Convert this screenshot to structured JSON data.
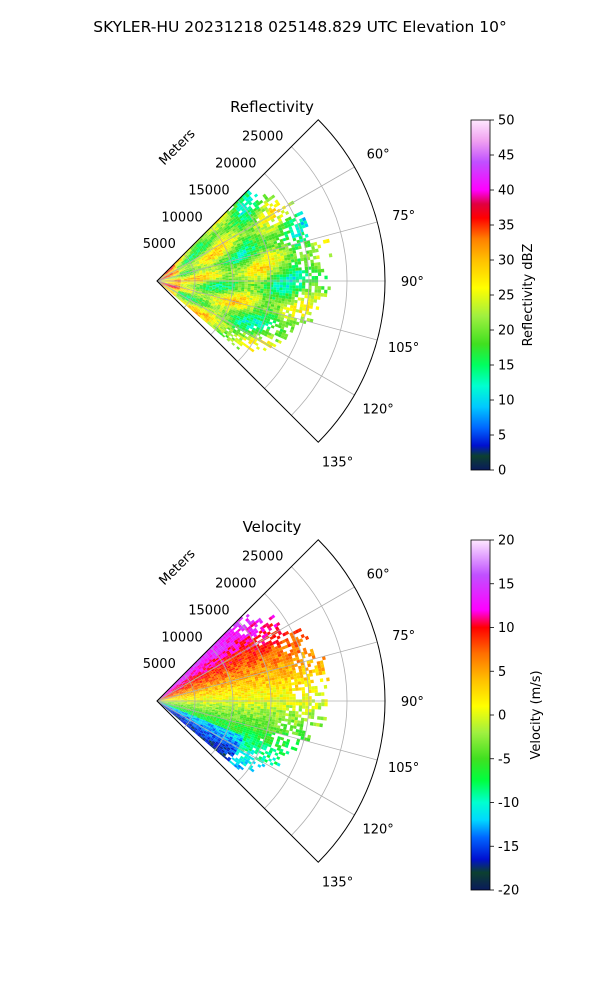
{
  "figure": {
    "suptitle": "SKYLER-HU  20231218  025148.829 UTC Elevation 10°"
  },
  "chart_data": [
    {
      "type": "polar-sector-heatmap",
      "title": "Reflectivity",
      "radial_axis_label": "Meters",
      "radial_ticks": [
        "5000",
        "10000",
        "15000",
        "20000",
        "25000"
      ],
      "radial_tick_values": [
        5000,
        10000,
        15000,
        20000,
        25000
      ],
      "rlim": [
        0,
        30000
      ],
      "angular_ticks": [
        "60°",
        "75°",
        "90°",
        "105°",
        "120°",
        "135°"
      ],
      "angular_tick_values": [
        60,
        75,
        90,
        105,
        120,
        135
      ],
      "theta_range_deg": [
        45,
        135
      ],
      "grid": true,
      "colorbar": {
        "label": "Reflectivity dBZ",
        "ticks": [
          "0",
          "5",
          "10",
          "15",
          "20",
          "25",
          "30",
          "35",
          "40",
          "45",
          "50"
        ],
        "min": 0,
        "max": 50,
        "stops": [
          {
            "v": 0,
            "c": "#0a1a5c"
          },
          {
            "v": 2,
            "c": "#0c4030"
          },
          {
            "v": 3.5,
            "c": "#0010d0"
          },
          {
            "v": 6,
            "c": "#0066ff"
          },
          {
            "v": 9,
            "c": "#00c8ff"
          },
          {
            "v": 12,
            "c": "#00ffd0"
          },
          {
            "v": 15,
            "c": "#00ff60"
          },
          {
            "v": 18,
            "c": "#40e020"
          },
          {
            "v": 22,
            "c": "#a0f040"
          },
          {
            "v": 26,
            "c": "#ffff00"
          },
          {
            "v": 30,
            "c": "#ffc000"
          },
          {
            "v": 33,
            "c": "#ff8000"
          },
          {
            "v": 36,
            "c": "#ff0000"
          },
          {
            "v": 38,
            "c": "#e00040"
          },
          {
            "v": 40,
            "c": "#ff00ff"
          },
          {
            "v": 44,
            "c": "#c050ff"
          },
          {
            "v": 47,
            "c": "#f0a0f0"
          },
          {
            "v": 50,
            "c": "#ffe8ff"
          }
        ]
      },
      "data_extent": {
        "theta_deg": [
          45,
          130
        ],
        "r_max_m": [
          5000,
          22000
        ]
      },
      "dominant_values": "mostly 20-32 dBZ with scattered cores of 34-38 dBZ"
    },
    {
      "type": "polar-sector-heatmap",
      "title": "Velocity",
      "radial_axis_label": "Meters",
      "radial_ticks": [
        "5000",
        "10000",
        "15000",
        "20000",
        "25000"
      ],
      "radial_tick_values": [
        5000,
        10000,
        15000,
        20000,
        25000
      ],
      "rlim": [
        0,
        30000
      ],
      "angular_ticks": [
        "60°",
        "75°",
        "90°",
        "105°",
        "120°",
        "135°"
      ],
      "angular_tick_values": [
        60,
        75,
        90,
        105,
        120,
        135
      ],
      "theta_range_deg": [
        45,
        135
      ],
      "grid": true,
      "colorbar": {
        "label": "Velocity (m/s)",
        "ticks": [
          "-20",
          "-15",
          "-10",
          "-5",
          "0",
          "5",
          "10",
          "15",
          "20"
        ],
        "min": -20,
        "max": 20,
        "stops": [
          {
            "v": -20,
            "c": "#0a1a5c"
          },
          {
            "v": -18,
            "c": "#0c4030"
          },
          {
            "v": -16.5,
            "c": "#0010d0"
          },
          {
            "v": -14,
            "c": "#0066ff"
          },
          {
            "v": -12,
            "c": "#00d8ff"
          },
          {
            "v": -10,
            "c": "#00ffd0"
          },
          {
            "v": -7.5,
            "c": "#00ff40"
          },
          {
            "v": -5,
            "c": "#40e020"
          },
          {
            "v": -2,
            "c": "#a0f040"
          },
          {
            "v": 1,
            "c": "#ffff00"
          },
          {
            "v": 4,
            "c": "#ffc000"
          },
          {
            "v": 7,
            "c": "#ff7000"
          },
          {
            "v": 10,
            "c": "#ff0000"
          },
          {
            "v": 12,
            "c": "#ff00ff"
          },
          {
            "v": 16,
            "c": "#c050ff"
          },
          {
            "v": 20,
            "c": "#ffe8ff"
          }
        ]
      },
      "data_extent": {
        "theta_deg": [
          45,
          130
        ],
        "r_max_m": [
          5000,
          22000
        ]
      },
      "dominant_values": "positive 5-15 m/s on the northern side, near 0 around 90°, negative -5 to -12 m/s on the southern side"
    }
  ]
}
